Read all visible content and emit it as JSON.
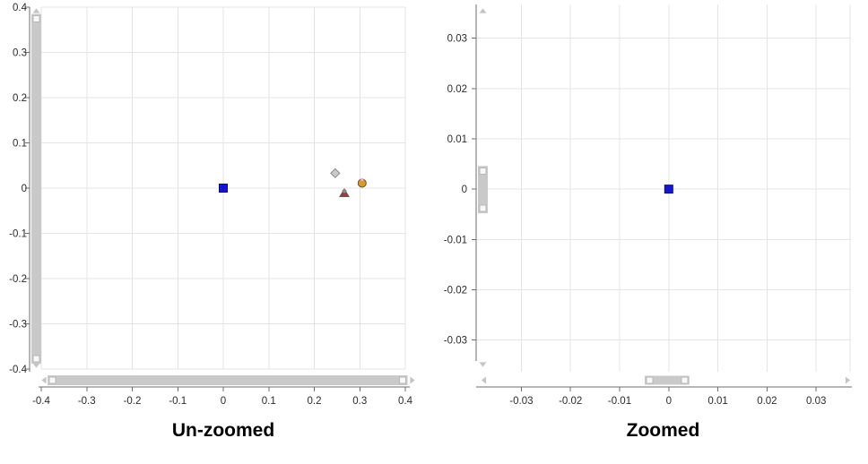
{
  "colors": {
    "background": "#ffffff",
    "grid": "#e4e4e4",
    "axis": "#6e6e6e",
    "tick_label": "#2b2b2b",
    "title": "#000000",
    "scroll_thumb": "#c9c9c9",
    "scroll_button_fill": "#f8f8f8",
    "scroll_button_border": "#b7b7b7",
    "scroll_arrow": "#c4c4c4"
  },
  "chart_data": [
    {
      "id": "unzoomed",
      "type": "scatter",
      "title": "Un-zoomed",
      "xlabel": "",
      "ylabel": "",
      "grid": true,
      "legend": "none",
      "xlim": [
        -0.4,
        0.4
      ],
      "ylim": [
        -0.4,
        0.4
      ],
      "x_ticks": [
        -0.4,
        -0.3,
        -0.2,
        -0.1,
        0,
        0.1,
        0.2,
        0.3,
        0.4
      ],
      "x_tick_labels": [
        "-0.4",
        "-0.3",
        "-0.2",
        "-0.1",
        "0",
        "0.1",
        "0.2",
        "0.3",
        "0.4"
      ],
      "y_ticks": [
        0.4,
        0.3,
        0.2,
        0.1,
        0,
        -0.1,
        -0.2,
        -0.3,
        -0.4
      ],
      "y_tick_labels": [
        "0.4",
        "0.3",
        "0.2",
        "0.1",
        "0",
        "-0.1",
        "-0.2",
        "-0.3",
        "-0.4"
      ],
      "series": [
        {
          "name": "blue-square",
          "marker": "square",
          "color": "#1515d2",
          "outline": "#0a0a8f",
          "points": [
            [
              0,
              0
            ]
          ]
        },
        {
          "name": "gray-diamond",
          "marker": "diamond",
          "color": "#c9c9c9",
          "outline": "#8a8a8a",
          "points": [
            [
              0.246,
              0.033
            ]
          ]
        },
        {
          "name": "dark-red-triangle",
          "marker": "triangle-star",
          "color": "#9c3b38",
          "outline": "#5a5a5a",
          "accent": "#8f8f8f",
          "points": [
            [
              0.266,
              -0.011
            ]
          ]
        },
        {
          "name": "gold-circle",
          "marker": "circle",
          "color": "#d89b2a",
          "outline": "#6b571c",
          "accent": "#f0aec6",
          "points": [
            [
              0.305,
              0.011
            ]
          ]
        }
      ],
      "scrollbars": {
        "horizontal": {
          "thumb_from": -0.386,
          "thumb_to": 0.405
        },
        "vertical": {
          "thumb_from": -0.388,
          "thumb_to": 0.385
        }
      }
    },
    {
      "id": "zoomed",
      "type": "scatter",
      "title": "Zoomed",
      "xlabel": "",
      "ylabel": "",
      "grid": true,
      "legend": "none",
      "xlim": [
        -0.0392,
        0.0369
      ],
      "ylim": [
        -0.0363,
        0.0367
      ],
      "x_ticks": [
        -0.03,
        -0.02,
        -0.01,
        0,
        0.01,
        0.02,
        0.03
      ],
      "x_tick_labels": [
        "-0.03",
        "-0.02",
        "-0.01",
        "0",
        "0.01",
        "0.02",
        "0.03"
      ],
      "y_ticks": [
        0.03,
        0.02,
        0.01,
        0,
        -0.01,
        -0.02,
        -0.03
      ],
      "y_tick_labels": [
        "0.03",
        "0.02",
        "0.01",
        "0",
        "-0.01",
        "-0.02",
        "-0.03"
      ],
      "series": [
        {
          "name": "blue-square",
          "marker": "square",
          "color": "#1515d2",
          "outline": "#0a0a8f",
          "points": [
            [
              0,
              0
            ]
          ]
        }
      ],
      "scrollbars": {
        "horizontal": {
          "thumb_from": -0.0049,
          "thumb_to": 0.0042
        },
        "vertical": {
          "thumb_from": -0.0048,
          "thumb_to": 0.0046
        }
      }
    }
  ]
}
